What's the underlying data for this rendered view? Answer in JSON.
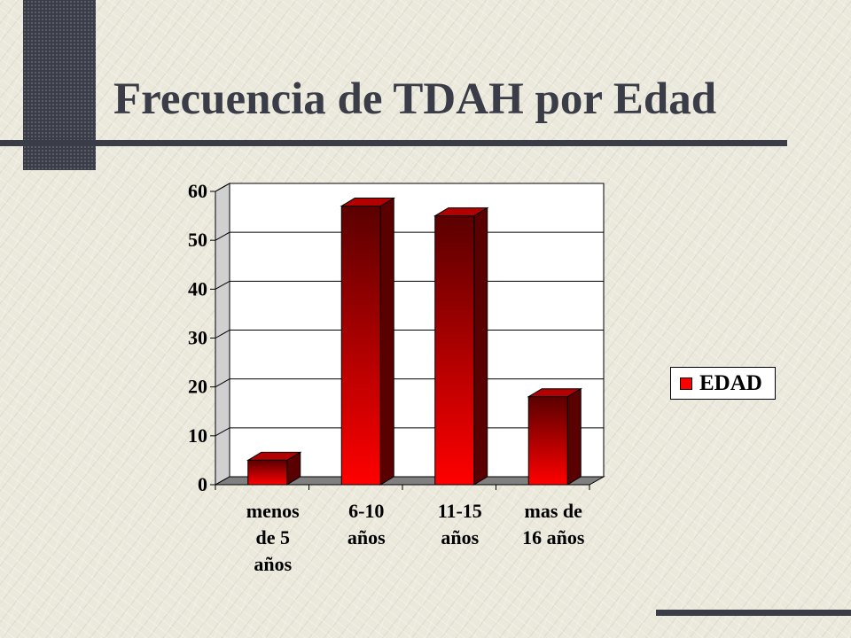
{
  "slide": {
    "title": "Frecuencia de TDAH por Edad"
  },
  "chart_data": {
    "type": "bar",
    "categories": [
      [
        "menos",
        "de 5",
        "años"
      ],
      [
        "6-10",
        "años"
      ],
      [
        "11-15",
        "años"
      ],
      [
        "mas de",
        "16 años"
      ]
    ],
    "series": [
      {
        "name": "EDAD",
        "values": [
          5,
          57,
          55,
          18
        ]
      }
    ],
    "ylim": [
      0,
      60
    ],
    "yticks": [
      0,
      10,
      20,
      30,
      40,
      50,
      60
    ],
    "grid": true,
    "style": "3d",
    "legend_position": "right",
    "colors": {
      "bar_front": "#ff0000",
      "bar_front_dark": "#5a0000",
      "bar_side": "#5a0000",
      "bar_top": "#b30000",
      "legend_swatch": "#ff0000"
    }
  }
}
